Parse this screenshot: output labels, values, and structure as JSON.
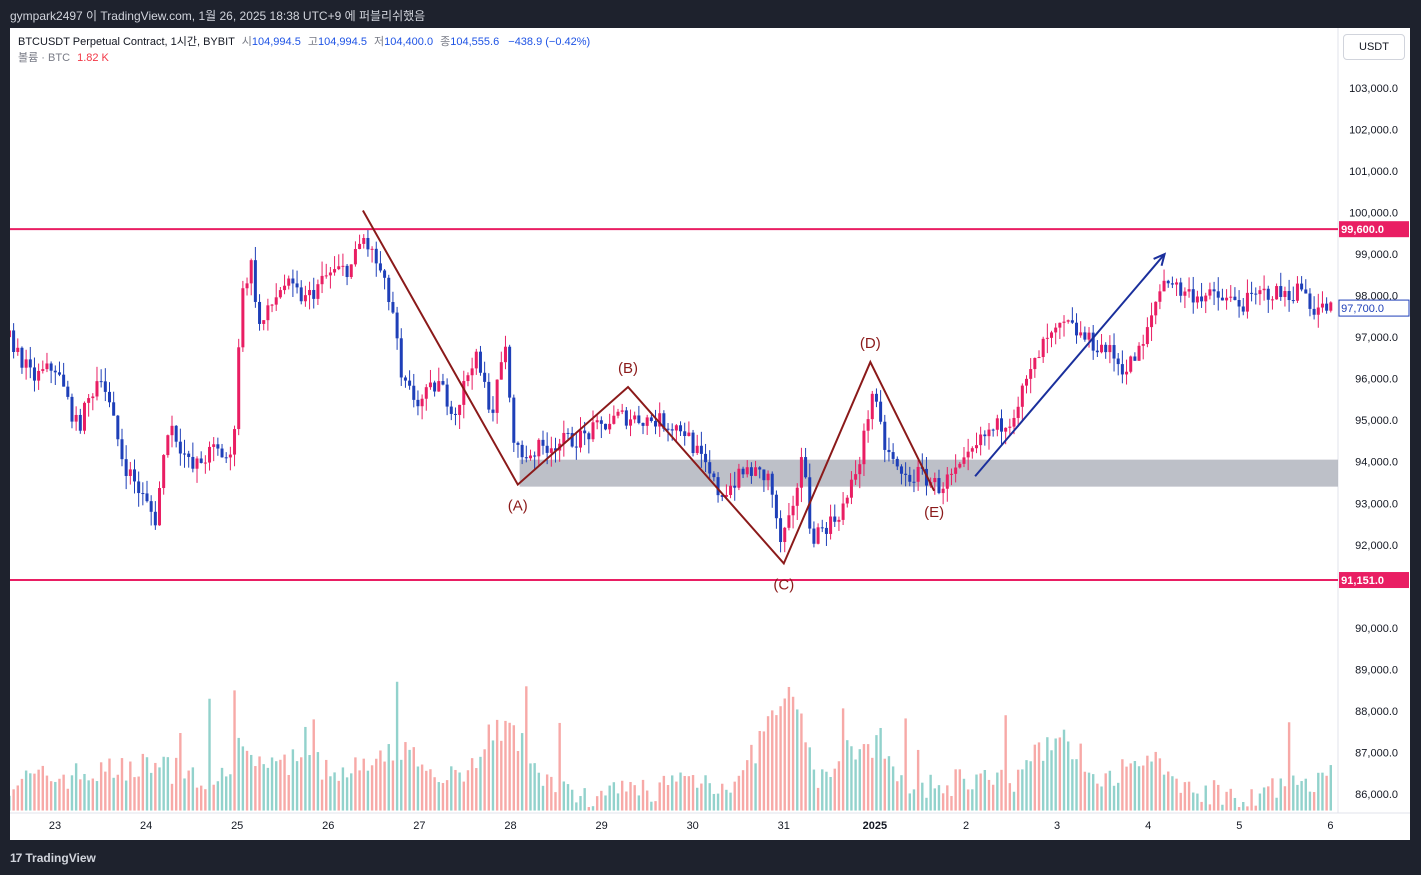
{
  "header": {
    "publish_text": "gympark2497 이 TradingView.com, 1월 26, 2025 18:38 UTC+9 에 퍼블리쉬했음"
  },
  "legend": {
    "symbol": "BTCUSDT Perpetual Contract, 1시간, BYBIT",
    "open_label": "시",
    "open": "104,994.5",
    "high_label": "고",
    "high": "104,994.5",
    "low_label": "저",
    "low": "104,400.0",
    "close_label": "종",
    "close": "104,555.6",
    "change": "−438.9 (−0.42%)",
    "volume_label": "볼륨 · BTC",
    "volume_value": "1.82 K"
  },
  "currency_button": "USDT",
  "footer": {
    "brand_mark": "17",
    "brand": "TradingView"
  },
  "colors": {
    "up": "#e91e63",
    "down": "#1e3fb8",
    "line": "#e91e63",
    "pattern": "#8b1a1a",
    "arrow": "#1a2f9c",
    "zone": "#b2b5be"
  },
  "chart_data": {
    "type": "candlestick",
    "x_ticks": [
      "23",
      "24",
      "25",
      "26",
      "27",
      "28",
      "29",
      "30",
      "31",
      "2025",
      "2",
      "3",
      "4",
      "5",
      "6"
    ],
    "y_ticks": [
      "103,000.0",
      "102,000.0",
      "101,000.0",
      "100,000.0",
      "99,000.0",
      "98,000.0",
      "97,000.0",
      "96,000.0",
      "95,000.0",
      "94,000.0",
      "93,000.0",
      "92,000.0",
      "90,000.0",
      "89,000.0",
      "88,000.0",
      "87,000.0",
      "86,000.0"
    ],
    "ylim": [
      85200,
      103900
    ],
    "horizontal_lines": [
      {
        "price": 99600,
        "label": "99,600.0"
      },
      {
        "price": 91151,
        "label": "91,151.0"
      }
    ],
    "current_price": {
      "price": 97700,
      "label": "97,700.0"
    },
    "zone": {
      "from_x": 5.1,
      "to_x": 15,
      "low": 93400,
      "high": 94050
    },
    "pattern": [
      {
        "label": "",
        "x": 3.38,
        "price": 100050
      },
      {
        "label": "(A)",
        "x": 5.08,
        "price": 93450
      },
      {
        "label": "(B)",
        "x": 6.29,
        "price": 95800
      },
      {
        "label": "(C)",
        "x": 8.0,
        "price": 91550
      },
      {
        "label": "(D)",
        "x": 8.95,
        "price": 96400
      },
      {
        "label": "(E)",
        "x": 9.65,
        "price": 93300
      }
    ],
    "arrow": {
      "from": {
        "x": 10.1,
        "price": 93650
      },
      "to": {
        "x": 12.18,
        "price": 99000
      }
    },
    "price_path": [
      [
        -0.5,
        97000
      ],
      [
        -0.25,
        96000
      ],
      [
        0.0,
        96300
      ],
      [
        0.25,
        94800
      ],
      [
        0.5,
        96200
      ],
      [
        0.75,
        94000
      ],
      [
        1.0,
        93000
      ],
      [
        1.1,
        92600
      ],
      [
        1.25,
        95000
      ],
      [
        1.5,
        93800
      ],
      [
        1.75,
        94300
      ],
      [
        1.95,
        94000
      ],
      [
        2.0,
        96300
      ],
      [
        2.05,
        98000
      ],
      [
        2.15,
        98800
      ],
      [
        2.25,
        97200
      ],
      [
        2.5,
        98300
      ],
      [
        2.75,
        97900
      ],
      [
        3.0,
        98500
      ],
      [
        3.25,
        98700
      ],
      [
        3.38,
        99400
      ],
      [
        3.55,
        98700
      ],
      [
        3.72,
        97500
      ],
      [
        3.8,
        95900
      ],
      [
        4.0,
        95400
      ],
      [
        4.2,
        95900
      ],
      [
        4.4,
        95200
      ],
      [
        4.6,
        96600
      ],
      [
        4.8,
        95200
      ],
      [
        4.95,
        96900
      ],
      [
        5.0,
        95000
      ],
      [
        5.1,
        94100
      ],
      [
        5.4,
        94400
      ],
      [
        5.8,
        94600
      ],
      [
        6.2,
        95100
      ],
      [
        6.6,
        95000
      ],
      [
        6.9,
        94800
      ],
      [
        7.1,
        94000
      ],
      [
        7.3,
        93200
      ],
      [
        7.6,
        93800
      ],
      [
        7.85,
        93600
      ],
      [
        7.95,
        92000
      ],
      [
        8.1,
        92700
      ],
      [
        8.2,
        94300
      ],
      [
        8.3,
        92200
      ],
      [
        8.55,
        92600
      ],
      [
        8.7,
        93100
      ],
      [
        8.85,
        94200
      ],
      [
        8.97,
        95700
      ],
      [
        9.1,
        94400
      ],
      [
        9.3,
        93600
      ],
      [
        9.5,
        93700
      ],
      [
        9.7,
        93400
      ],
      [
        9.95,
        93800
      ],
      [
        10.2,
        94600
      ],
      [
        10.5,
        95100
      ],
      [
        10.85,
        96800
      ],
      [
        11.1,
        97300
      ],
      [
        11.35,
        96900
      ],
      [
        11.55,
        96700
      ],
      [
        11.75,
        96200
      ],
      [
        11.95,
        96800
      ],
      [
        12.1,
        98000
      ],
      [
        12.2,
        98500
      ],
      [
        12.35,
        98100
      ],
      [
        12.6,
        98000
      ],
      [
        12.85,
        97900
      ],
      [
        13.05,
        97800
      ],
      [
        13.3,
        98100
      ],
      [
        13.5,
        98000
      ],
      [
        13.7,
        98200
      ],
      [
        13.8,
        97700
      ],
      [
        14.0,
        97700
      ],
      [
        14.05,
        97900
      ]
    ],
    "volume_scale_max": 90200,
    "volume_profile": [
      [
        -0.5,
        86200
      ],
      [
        0.0,
        86300
      ],
      [
        0.5,
        86400
      ],
      [
        1.0,
        86600
      ],
      [
        1.5,
        86400
      ],
      [
        1.95,
        86200
      ],
      [
        2.0,
        87000
      ],
      [
        2.5,
        86500
      ],
      [
        2.75,
        87200
      ],
      [
        3.0,
        86300
      ],
      [
        3.5,
        86600
      ],
      [
        3.8,
        86900
      ],
      [
        4.0,
        86700
      ],
      [
        4.5,
        86300
      ],
      [
        4.8,
        87500
      ],
      [
        5.0,
        87400
      ],
      [
        5.5,
        86000
      ],
      [
        6.0,
        85900
      ],
      [
        6.5,
        86000
      ],
      [
        7.0,
        86300
      ],
      [
        7.5,
        86100
      ],
      [
        7.9,
        87900
      ],
      [
        8.1,
        88200
      ],
      [
        8.4,
        86200
      ],
      [
        8.9,
        87300
      ],
      [
        9.3,
        86200
      ],
      [
        9.6,
        86000
      ],
      [
        10.0,
        86300
      ],
      [
        10.5,
        86100
      ],
      [
        11.0,
        87400
      ],
      [
        11.5,
        86200
      ],
      [
        12.0,
        86700
      ],
      [
        12.5,
        86000
      ],
      [
        13.0,
        85900
      ],
      [
        13.5,
        86000
      ],
      [
        14.0,
        86400
      ]
    ]
  }
}
